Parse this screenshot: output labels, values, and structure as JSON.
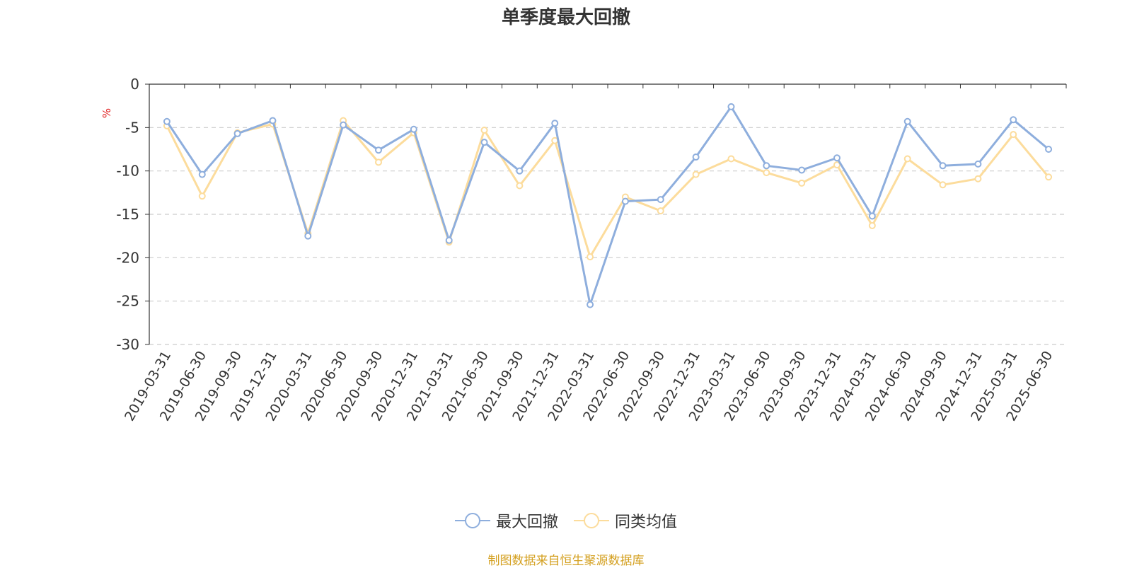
{
  "chart_data": {
    "type": "line",
    "title": "单季度最大回撤",
    "ylabel": "%",
    "ylim": [
      -30,
      0
    ],
    "yticks": [
      0,
      -5,
      -10,
      -15,
      -20,
      -25,
      -30
    ],
    "grid": true,
    "legend_position": "bottom",
    "categories": [
      "2019-03-31",
      "2019-06-30",
      "2019-09-30",
      "2019-12-31",
      "2020-03-31",
      "2020-06-30",
      "2020-09-30",
      "2020-12-31",
      "2021-03-31",
      "2021-06-30",
      "2021-09-30",
      "2021-12-31",
      "2022-03-31",
      "2022-06-30",
      "2022-09-30",
      "2022-12-31",
      "2023-03-31",
      "2023-06-30",
      "2023-09-30",
      "2023-12-31",
      "2024-03-31",
      "2024-06-30",
      "2024-09-30",
      "2024-12-31",
      "2025-03-31",
      "2025-06-30"
    ],
    "series": [
      {
        "name": "最大回撤",
        "color": "#8eaedd",
        "values": [
          -4.3,
          -10.4,
          -5.7,
          -4.2,
          -17.5,
          -4.7,
          -7.6,
          -5.2,
          -18.0,
          -6.7,
          -10.0,
          -4.5,
          -25.4,
          -13.5,
          -13.3,
          -8.4,
          -2.6,
          -9.4,
          -9.9,
          -8.5,
          -15.2,
          -4.3,
          -9.4,
          -9.2,
          -4.1,
          -7.5
        ]
      },
      {
        "name": "同类均值",
        "color": "#fcdc9c",
        "values": [
          -4.8,
          -12.9,
          -5.6,
          -4.6,
          -17.2,
          -4.2,
          -9.0,
          -5.6,
          -18.2,
          -5.3,
          -11.7,
          -6.5,
          -19.9,
          -13.0,
          -14.6,
          -10.4,
          -8.6,
          -10.2,
          -11.4,
          -9.3,
          -16.3,
          -8.6,
          -11.6,
          -10.9,
          -5.8,
          -10.7
        ]
      }
    ]
  },
  "source_note": "制图数据来自恒生聚源数据库"
}
